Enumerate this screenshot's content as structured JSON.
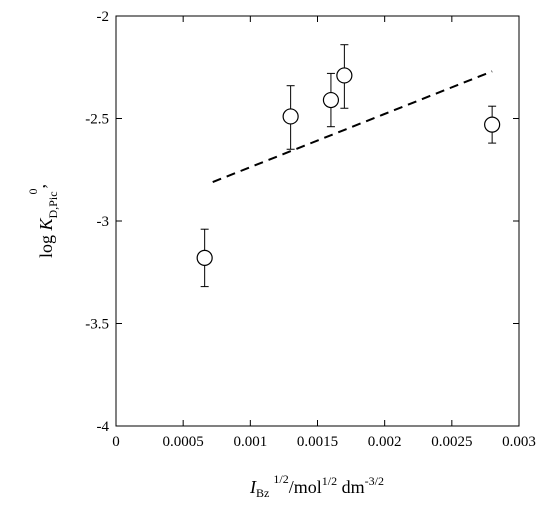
{
  "chart_data": {
    "type": "scatter",
    "title": "",
    "x_range": [
      0,
      0.003
    ],
    "y_range": [
      -4,
      -2
    ],
    "x_ticks": [
      {
        "value": 0,
        "label": "0"
      },
      {
        "value": 0.0005,
        "label": "0.0005"
      },
      {
        "value": 0.001,
        "label": "0.001"
      },
      {
        "value": 0.0015,
        "label": "0.0015"
      },
      {
        "value": 0.002,
        "label": "0.002"
      },
      {
        "value": 0.0025,
        "label": "0.0025"
      },
      {
        "value": 0.003,
        "label": "0.003"
      }
    ],
    "y_ticks": [
      {
        "value": -2,
        "label": "-2"
      },
      {
        "value": -2.5,
        "label": "-2.5"
      },
      {
        "value": -3,
        "label": "-3"
      },
      {
        "value": -3.5,
        "label": "-3.5"
      },
      {
        "value": -4,
        "label": "-4"
      }
    ],
    "grid": false,
    "xlabel": {
      "main": "I",
      "sub": "Bz",
      "sup1": "1/2",
      "mid": "/mol",
      "sup2": "1/2",
      "mid2": " dm",
      "sup3": "-3/2"
    },
    "ylabel": {
      "main": "log ",
      "italic": "K",
      "sub": "D,Pic",
      "sup": "0",
      "comma": ","
    },
    "points": [
      {
        "x": 0.00066,
        "y": -3.18,
        "err_low": 0.14,
        "err_high": 0.14
      },
      {
        "x": 0.0013,
        "y": -2.49,
        "err_low": 0.16,
        "err_high": 0.15
      },
      {
        "x": 0.0016,
        "y": -2.41,
        "err_low": 0.13,
        "err_high": 0.13
      },
      {
        "x": 0.0017,
        "y": -2.29,
        "err_low": 0.16,
        "err_high": 0.15
      },
      {
        "x": 0.0028,
        "y": -2.53,
        "err_low": 0.09,
        "err_high": 0.09
      }
    ],
    "line": {
      "style": "dashed",
      "x": [
        0.00072,
        0.0028
      ],
      "y": [
        -2.81,
        -2.27
      ]
    }
  }
}
